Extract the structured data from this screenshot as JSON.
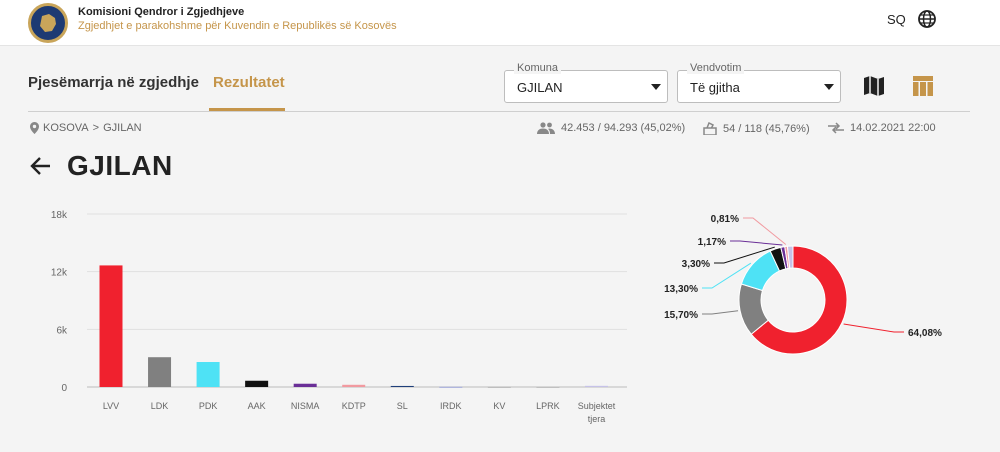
{
  "header": {
    "org_name": "Komisioni Qendror i Zgjedhjeve",
    "org_subtitle": "Zgjedhjet e parakohshme për Kuvendin e Republikës së Kosovës",
    "language": "SQ"
  },
  "nav": {
    "tab_participation": "Pjesëmarrja në zgjedhje",
    "tab_results": "Rezultatet"
  },
  "filters": {
    "komuna_label": "Komuna",
    "komuna_value": "GJILAN",
    "vendvotim_label": "Vendvotim",
    "vendvotim_value": "Të gjitha"
  },
  "breadcrumb": {
    "root": "KOSOVA",
    "separator": ">",
    "current": "GJILAN"
  },
  "stats": {
    "voters": "42.453 / 94.293 (45,02%)",
    "stations": "54 / 118 (45,76%)",
    "updated": "14.02.2021 22:00"
  },
  "page_title": "GJILAN",
  "colors": {
    "accent": "#c5954a",
    "brand": "#1d3a73"
  },
  "chart_data": [
    {
      "type": "bar",
      "categories": [
        "LVV",
        "LDK",
        "PDK",
        "AAK",
        "NISMA",
        "KDTP",
        "SL",
        "IRDK",
        "KV",
        "LPRK",
        "Subjektet tjera"
      ],
      "values": [
        12650,
        3100,
        2600,
        650,
        340,
        230,
        110,
        25,
        15,
        10,
        120
      ],
      "colors": [
        "#f0212e",
        "#808080",
        "#4ee2f5",
        "#111111",
        "#6a2f97",
        "#f19aa0",
        "#1f3f7a",
        "#9aa3d6",
        "#b5b5b5",
        "#bbbbbb",
        "#c6c2e8"
      ],
      "ylim": [
        0,
        18000
      ],
      "yticks": [
        "0",
        "6k",
        "12k",
        "18k"
      ],
      "ytick_values": [
        0,
        6000,
        12000,
        18000
      ],
      "grid": true
    },
    {
      "type": "pie",
      "donut": true,
      "slices": [
        {
          "label": "64,08%",
          "value": 64.08,
          "color": "#f0212e"
        },
        {
          "label": "15,70%",
          "value": 15.7,
          "color": "#808080"
        },
        {
          "label": "13,30%",
          "value": 13.3,
          "color": "#4ee2f5"
        },
        {
          "label": "3,30%",
          "value": 3.3,
          "color": "#111111"
        },
        {
          "label": "1,17%",
          "value": 1.17,
          "color": "#6a2f97"
        },
        {
          "label": "0,81%",
          "value": 0.81,
          "color": "#f19aa0"
        },
        {
          "label": "",
          "value": 1.64,
          "color": "#c6c2e8"
        }
      ]
    }
  ]
}
